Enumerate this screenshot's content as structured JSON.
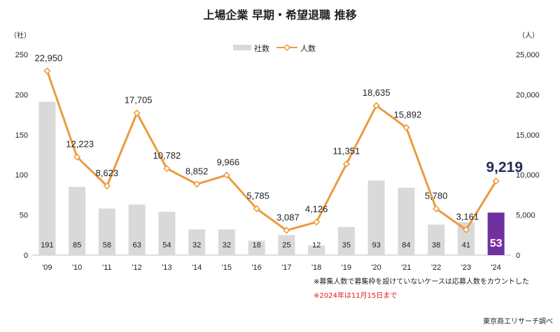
{
  "chart_data": {
    "type": "bar+line",
    "title": "上場企業 早期・希望退職 推移",
    "categories": [
      "'09",
      "'10",
      "'11",
      "'12",
      "'13",
      "'14",
      "'15",
      "'16",
      "'17",
      "'18",
      "'19",
      "'20",
      "'21",
      "'22",
      "'23",
      "'24"
    ],
    "left_axis": {
      "unit": "（社）",
      "ylim": [
        0,
        250
      ],
      "ticks": [
        "0",
        "50",
        "100",
        "150",
        "200",
        "250"
      ]
    },
    "right_axis": {
      "unit": "（人）",
      "ylim": [
        0,
        25000
      ],
      "ticks": [
        "0",
        "5,000",
        "10,000",
        "15,000",
        "20,000",
        "25,000"
      ]
    },
    "series": [
      {
        "name": "社数",
        "kind": "bar",
        "axis": "left",
        "color": "#d9d9d9",
        "highlight_color": "#7030a0",
        "values": [
          191,
          85,
          58,
          63,
          54,
          32,
          32,
          18,
          25,
          12,
          35,
          93,
          84,
          38,
          41,
          53
        ],
        "labels": [
          "191",
          "85",
          "58",
          "63",
          "54",
          "32",
          "32",
          "18",
          "25",
          "12",
          "35",
          "93",
          "84",
          "38",
          "41",
          "53"
        ]
      },
      {
        "name": "人数",
        "kind": "line",
        "axis": "right",
        "color": "#ed9a3f",
        "values": [
          22950,
          12223,
          8623,
          17705,
          10782,
          8852,
          9966,
          5785,
          3087,
          4126,
          11351,
          18635,
          15892,
          5780,
          3161,
          9219
        ],
        "labels": [
          "22,950",
          "12,223",
          "8,623",
          "17,705",
          "10,782",
          "8,852",
          "9,966",
          "5,785",
          "3,087",
          "4,126",
          "11,351",
          "18,635",
          "15,892",
          "5,780",
          "3,161",
          "9,219"
        ]
      }
    ],
    "legend": {
      "position": "top-center",
      "entries": [
        "社数",
        "人数"
      ]
    },
    "notes": [
      "※募集人数で募集枠を設けていないケースは応募人数をカウントした",
      "※2024年は11月15日まで"
    ],
    "source": "東京商工リサーチ調べ"
  }
}
